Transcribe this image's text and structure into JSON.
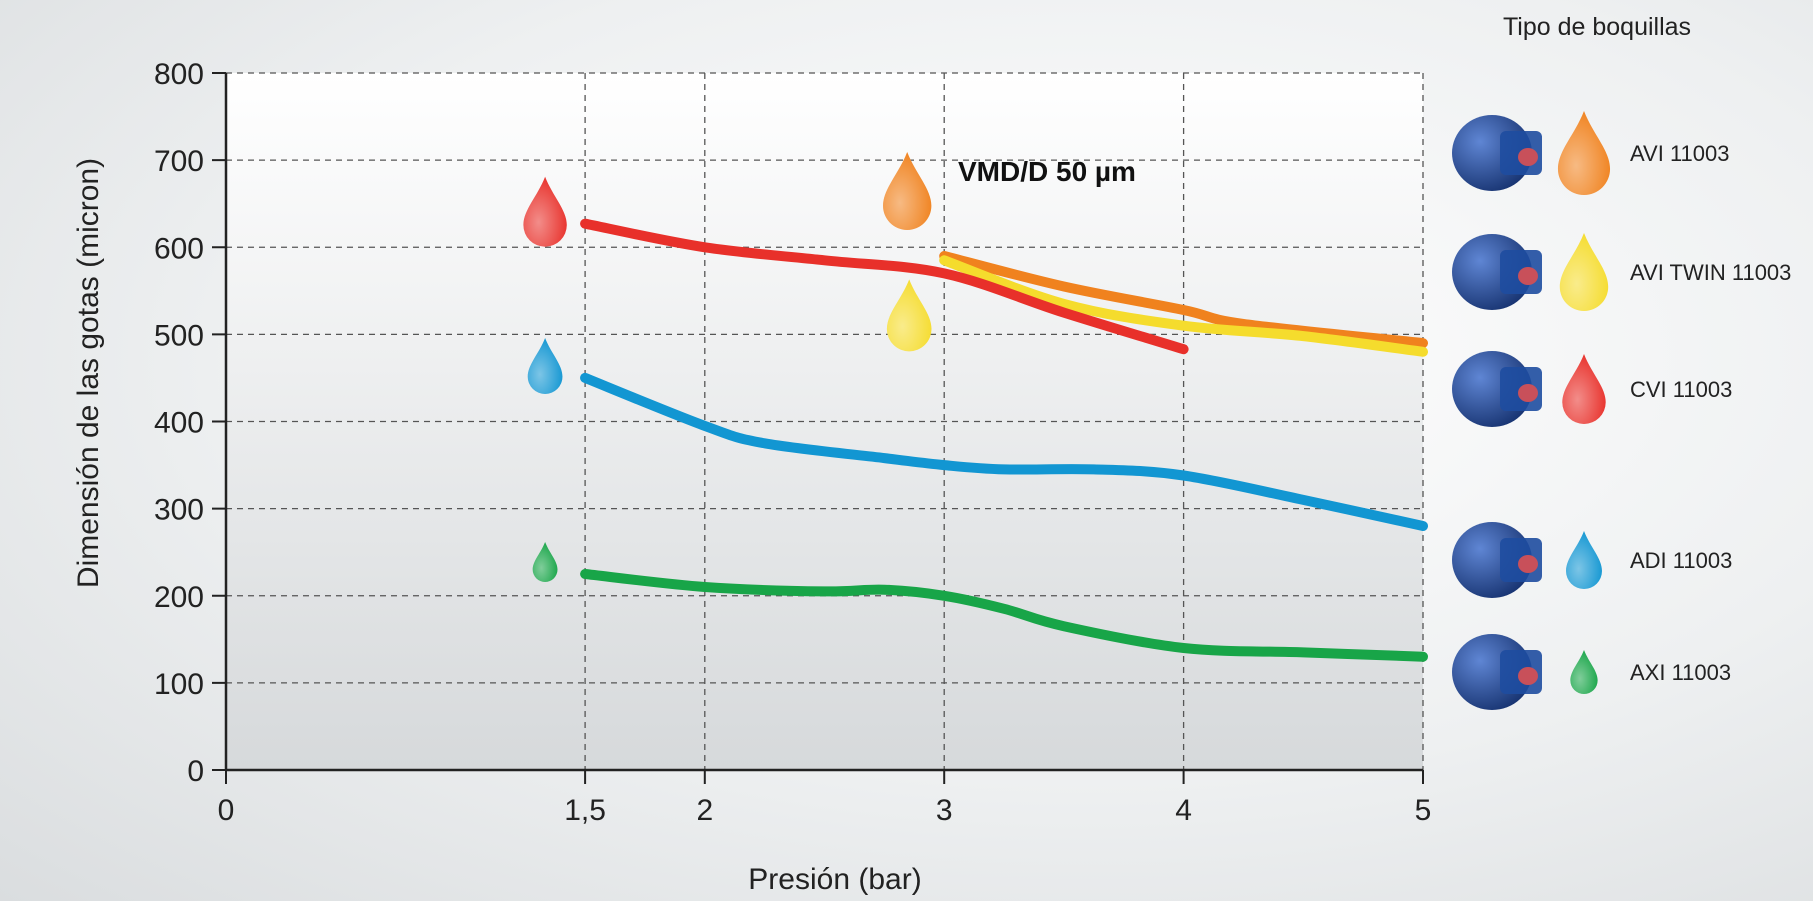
{
  "colors": {
    "AVI 11003": "#f0821e",
    "AVI TWIN 11003": "#f5dc2d",
    "CVI 11003": "#e8302a",
    "ADI 11003": "#1296d2",
    "AXI 11003": "#18a548",
    "nozzle_body": "#1e4da0"
  },
  "chart_data": {
    "type": "line",
    "xlabel": "Presión (bar)",
    "ylabel": "Dimensión de las gotas (micron)",
    "xlim": [
      0,
      5
    ],
    "ylim": [
      0,
      800
    ],
    "x_ticks": [
      0,
      1.5,
      2,
      3,
      4,
      5
    ],
    "x_tick_labels": [
      "0",
      "1,5",
      "2",
      "3",
      "4",
      "5"
    ],
    "y_ticks": [
      0,
      100,
      200,
      300,
      400,
      500,
      600,
      700,
      800
    ],
    "y_tick_labels": [
      "0",
      "100",
      "200",
      "300",
      "400",
      "500",
      "600",
      "700",
      "800"
    ],
    "grid": true,
    "annotation": "VMD/D 50 µm",
    "legend_title": "Tipo de boquillas",
    "legend_placement": "right",
    "series": [
      {
        "name": "AVI 11003",
        "x": [
          3,
          3.5,
          4,
          4.25,
          5
        ],
        "y": [
          590,
          555,
          528,
          512,
          490
        ]
      },
      {
        "name": "AVI TWIN 11003",
        "x": [
          3,
          3.5,
          4,
          4.5,
          5
        ],
        "y": [
          585,
          535,
          510,
          498,
          480
        ]
      },
      {
        "name": "CVI 11003",
        "x": [
          1.5,
          2,
          2.5,
          3,
          3.5,
          4
        ],
        "y": [
          627,
          600,
          585,
          570,
          525,
          483
        ]
      },
      {
        "name": "ADI 11003",
        "x": [
          1.5,
          2,
          2.25,
          2.75,
          3,
          3.25,
          3.625,
          4,
          4.5,
          5
        ],
        "y": [
          450,
          395,
          375,
          358,
          350,
          345,
          345,
          338,
          310,
          280
        ]
      },
      {
        "name": "AXI 11003",
        "x": [
          1.5,
          2,
          2.5,
          2.75,
          3,
          3.25,
          3.5,
          4,
          4.5,
          5
        ],
        "y": [
          225,
          210,
          205,
          207,
          200,
          185,
          165,
          140,
          135,
          130
        ]
      }
    ]
  }
}
